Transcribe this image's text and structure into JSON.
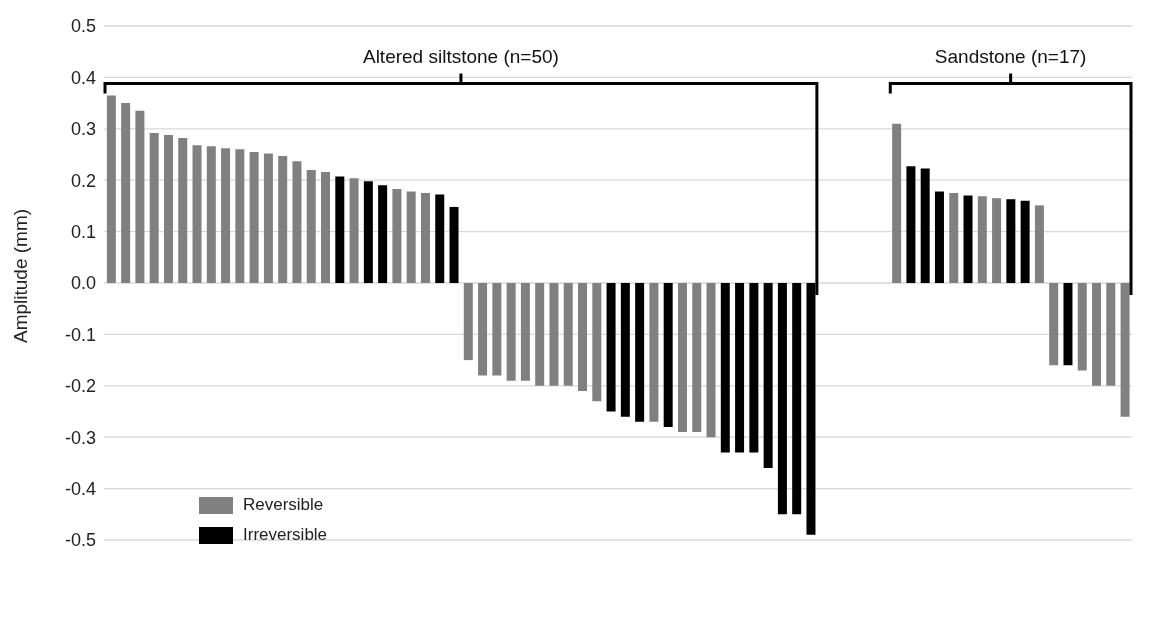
{
  "chart_data": {
    "type": "bar",
    "ylabel": "Amplitude (mm)",
    "categories": [
      null,
      null,
      null,
      null,
      null,
      null,
      null,
      null,
      null,
      null,
      null,
      null,
      null,
      null,
      null,
      null,
      null,
      null,
      null,
      null,
      null,
      null,
      null,
      null,
      null,
      null,
      null,
      null,
      null,
      null,
      null,
      null,
      null,
      null,
      null,
      null,
      null,
      null,
      null,
      null,
      null,
      null,
      null,
      null,
      null,
      null,
      null,
      null,
      null,
      null,
      null,
      null,
      null,
      null,
      null,
      null,
      null,
      null,
      null,
      null,
      null,
      null,
      null,
      null,
      null,
      null,
      null,
      null,
      null,
      null,
      null,
      null
    ],
    "series": [
      {
        "name": "Reversible",
        "color": "#808080",
        "values": [
          0.365,
          0.35,
          0.335,
          0.292,
          0.288,
          0.282,
          0.268,
          0.266,
          0.262,
          0.26,
          0.255,
          0.252,
          0.247,
          0.237,
          0.22,
          0.216,
          null,
          0.204,
          null,
          null,
          0.183,
          0.178,
          0.175,
          null,
          null,
          -0.15,
          -0.18,
          -0.18,
          -0.19,
          -0.19,
          -0.2,
          -0.2,
          -0.2,
          -0.21,
          -0.23,
          null,
          null,
          null,
          -0.27,
          null,
          -0.29,
          -0.29,
          -0.3,
          null,
          null,
          null,
          null,
          null,
          null,
          null,
          null,
          null,
          null,
          null,
          null,
          0.31,
          null,
          null,
          null,
          0.175,
          null,
          0.169,
          0.165,
          null,
          null,
          0.151,
          -0.16,
          null,
          -0.17,
          -0.2,
          -0.2,
          -0.26
        ]
      },
      {
        "name": "Irreversible",
        "color": "#000000",
        "values": [
          null,
          null,
          null,
          null,
          null,
          null,
          null,
          null,
          null,
          null,
          null,
          null,
          null,
          null,
          null,
          null,
          0.207,
          null,
          0.198,
          0.19,
          null,
          null,
          null,
          0.172,
          0.148,
          null,
          null,
          null,
          null,
          null,
          null,
          null,
          null,
          null,
          null,
          -0.25,
          -0.26,
          -0.27,
          null,
          -0.28,
          null,
          null,
          null,
          -0.33,
          -0.33,
          -0.33,
          -0.36,
          -0.45,
          -0.45,
          -0.49,
          null,
          null,
          null,
          null,
          null,
          null,
          0.227,
          0.223,
          0.178,
          null,
          0.17,
          null,
          null,
          0.163,
          0.16,
          null,
          null,
          -0.16,
          null,
          null,
          null,
          null
        ]
      }
    ],
    "stacked": true,
    "ylim": [
      -0.5,
      0.5
    ],
    "yticks": [
      -0.5,
      -0.4,
      -0.3,
      -0.2,
      -0.1,
      {
        "value": 0,
        "label": "0.0"
      },
      0.1,
      0.2,
      0.3,
      0.4,
      0.5
    ],
    "grid": "y",
    "legend": "bottom left",
    "tick_labels": "y",
    "annotations": [
      "Altered siltstone (n=50)",
      "Sandstone (n=17)"
    ]
  }
}
